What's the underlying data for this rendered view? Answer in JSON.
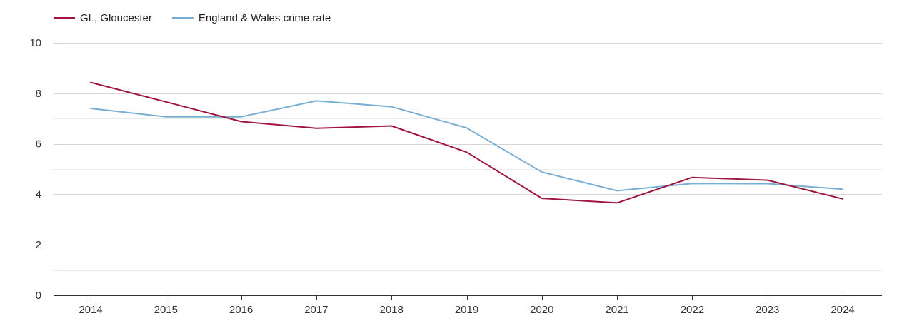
{
  "chart_data": {
    "type": "line",
    "x": [
      "2014",
      "2015",
      "2016",
      "2017",
      "2018",
      "2019",
      "2020",
      "2021",
      "2022",
      "2023",
      "2024"
    ],
    "series": [
      {
        "name": "GL, Gloucester",
        "color": "#a0153e",
        "values": [
          8.43,
          7.66,
          6.88,
          6.62,
          6.71,
          5.67,
          3.84,
          3.66,
          4.67,
          4.56,
          3.82
        ]
      },
      {
        "name": "England & Wales crime rate",
        "color": "#79aed4",
        "values": [
          7.4,
          7.07,
          7.07,
          7.7,
          7.47,
          6.63,
          4.88,
          4.14,
          4.43,
          4.42,
          4.2
        ]
      }
    ],
    "ylim": [
      0,
      10
    ],
    "yticks": [
      "0",
      "2",
      "4",
      "6",
      "8",
      "10"
    ],
    "grid": true,
    "legend_position": "top-left"
  }
}
